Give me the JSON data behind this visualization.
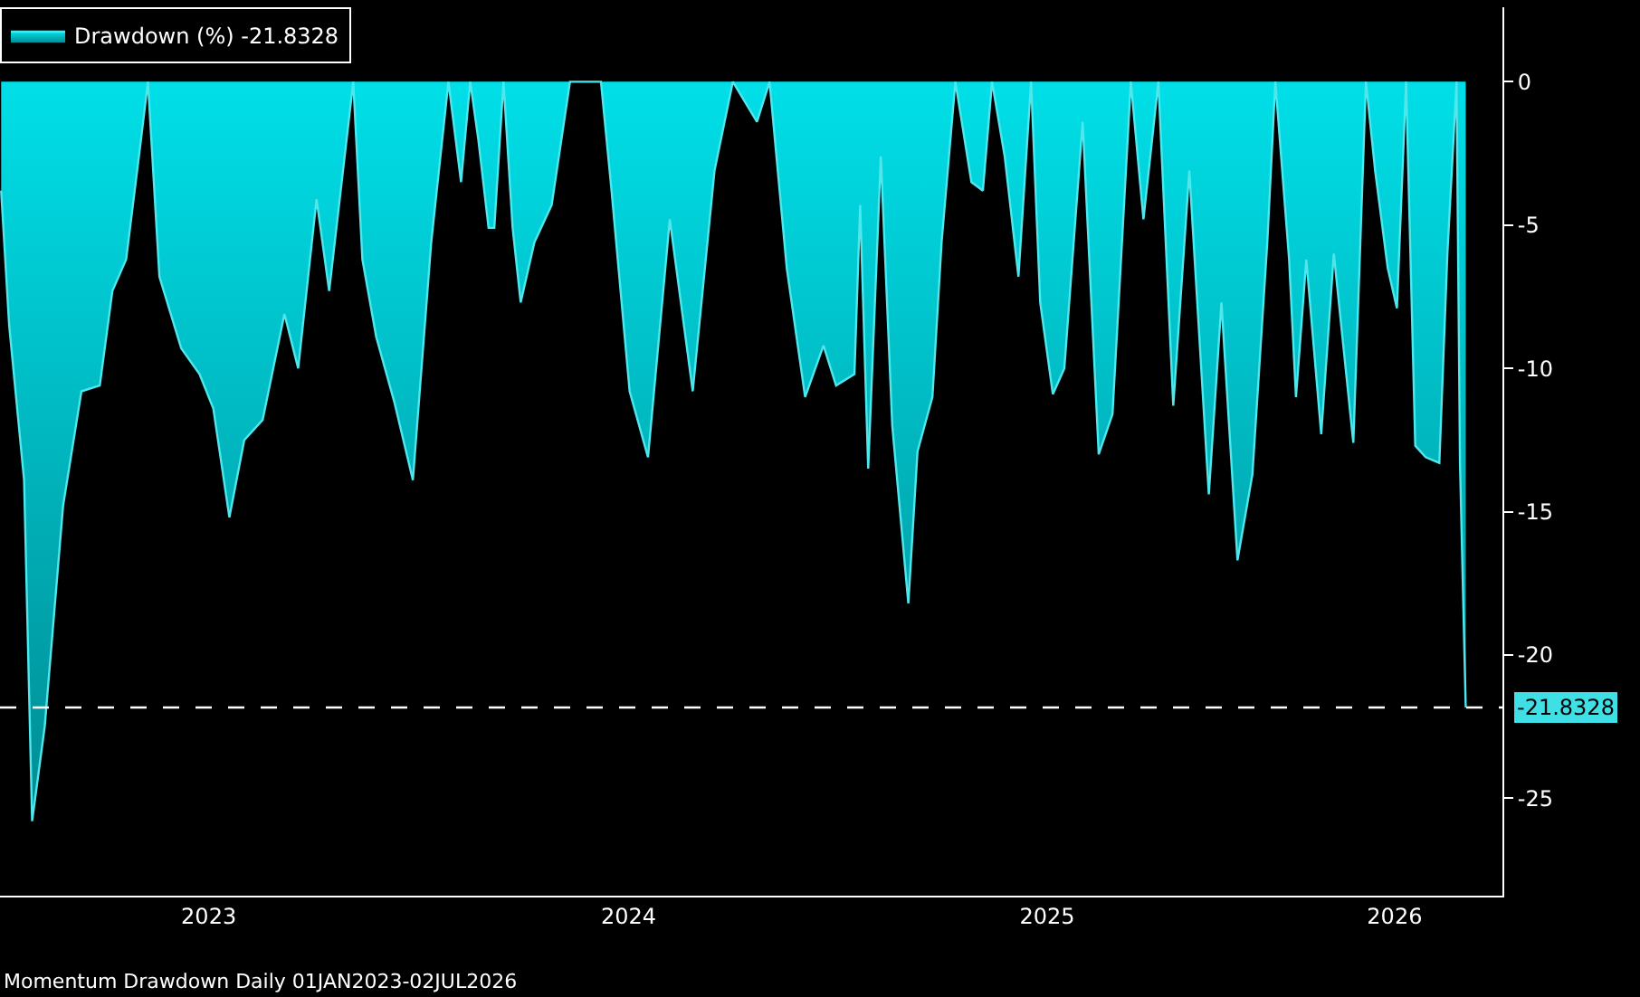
{
  "chart_data": {
    "type": "area",
    "x": [
      "2023-01-02",
      "2023-01-09",
      "2023-01-22",
      "2023-01-29",
      "2023-02-09",
      "2023-02-25",
      "2023-03-13",
      "2023-03-29",
      "2023-04-09",
      "2023-04-21",
      "2023-05-04",
      "2023-05-10",
      "2023-05-20",
      "2023-06-08",
      "2023-06-24",
      "2023-07-06",
      "2023-07-20",
      "2023-08-02",
      "2023-08-18",
      "2023-09-06",
      "2023-09-18",
      "2023-10-04",
      "2023-10-15",
      "2023-11-05",
      "2023-11-13",
      "2023-11-25",
      "2023-12-11",
      "2023-12-27",
      "2024-01-12",
      "2024-01-27",
      "2024-02-07",
      "2024-02-15",
      "2024-02-22",
      "2024-03-02",
      "2024-03-07",
      "2024-03-15",
      "2024-03-23",
      "2024-03-30",
      "2024-04-11",
      "2024-04-26",
      "2024-05-12",
      "2024-06-08",
      "2024-06-17",
      "2024-07-03",
      "2024-07-19",
      "2024-08-07",
      "2024-08-27",
      "2024-09-15",
      "2024-10-01",
      "2024-10-22",
      "2024-11-02",
      "2024-11-17",
      "2024-12-03",
      "2024-12-19",
      "2024-12-30",
      "2025-01-15",
      "2025-01-20",
      "2025-01-27",
      "2025-02-07",
      "2025-02-17",
      "2025-03-03",
      "2025-03-11",
      "2025-03-24",
      "2025-04-01",
      "2025-04-13",
      "2025-04-27",
      "2025-05-07",
      "2025-05-15",
      "2025-05-26",
      "2025-06-07",
      "2025-06-18",
      "2025-06-26",
      "2025-07-07",
      "2025-07-17",
      "2025-08-02",
      "2025-08-16",
      "2025-08-28",
      "2025-09-13",
      "2025-09-24",
      "2025-10-07",
      "2025-10-20",
      "2025-11-03",
      "2025-11-20",
      "2025-12-01",
      "2025-12-15",
      "2025-12-28",
      "2026-01-10",
      "2026-01-17",
      "2026-01-29",
      "2026-02-04",
      "2026-02-13",
      "2026-02-26",
      "2026-03-09",
      "2026-03-26",
      "2026-04-06",
      "2026-04-14",
      "2026-04-25",
      "2026-05-03",
      "2026-05-11",
      "2026-05-19",
      "2026-05-28",
      "2026-06-09",
      "2026-06-16",
      "2026-06-24",
      "2026-06-27",
      "2026-07-02"
    ],
    "series": [
      {
        "name": "Drawdown (%) -21.8328",
        "color": "#00dfe8",
        "values": [
          -3.8,
          -8.5,
          -13.9,
          -25.8,
          -22.5,
          -14.8,
          -10.8,
          -10.6,
          -7.3,
          -6.2,
          -2.0,
          0,
          -6.8,
          -9.3,
          -10.2,
          -11.4,
          -15.2,
          -12.5,
          -11.8,
          -8.1,
          -10.0,
          -4.1,
          -7.3,
          0,
          -6.2,
          -8.9,
          -11.2,
          -13.9,
          -5.6,
          0,
          -3.5,
          0,
          -2.0,
          -5.1,
          -5.1,
          0,
          -5.1,
          -7.7,
          -5.6,
          -4.3,
          0,
          0,
          -3.7,
          -10.8,
          -13.1,
          -4.8,
          -10.8,
          -3.1,
          0,
          -1.4,
          0,
          -6.5,
          -11.0,
          -9.2,
          -10.6,
          -10.2,
          -4.3,
          -13.5,
          -2.6,
          -12.0,
          -18.2,
          -12.9,
          -11.0,
          -5.6,
          0,
          -3.5,
          -3.8,
          0,
          -2.6,
          -6.8,
          0,
          -7.7,
          -10.9,
          -10.0,
          -1.4,
          -13.0,
          -11.6,
          0,
          -4.8,
          0,
          -11.3,
          -3.1,
          -14.4,
          -7.7,
          -16.7,
          -13.7,
          -5.6,
          0,
          -6.2,
          -11.0,
          -6.2,
          -12.3,
          -6.0,
          -12.6,
          0,
          -3.1,
          -6.5,
          -7.9,
          0,
          -12.7,
          -13.1,
          -13.3,
          -6.0,
          0,
          -13.3,
          -21.8328
        ]
      }
    ],
    "xlim": [
      "2023-01-01",
      "2026-08-03"
    ],
    "xticks": [
      {
        "value": "2023-07-02",
        "label": "2023"
      },
      {
        "value": "2024-07-02",
        "label": "2024"
      },
      {
        "value": "2025-07-02",
        "label": "2025"
      },
      {
        "value": "2026-05-01",
        "label": "2026"
      }
    ],
    "ylim": [
      -28.4,
      2.6
    ],
    "yticks": [
      0,
      -5,
      -10,
      -15,
      -20,
      -25
    ],
    "ref_lines": [
      {
        "axis": "y",
        "value": -21.8328,
        "label": "-21.8328",
        "color": "#ffffff",
        "line_style": "dashed"
      }
    ],
    "annotations": [
      "Momentum Drawdown Daily 01JAN2023-02JUL2026"
    ],
    "legend": "top left",
    "grid": false
  }
}
